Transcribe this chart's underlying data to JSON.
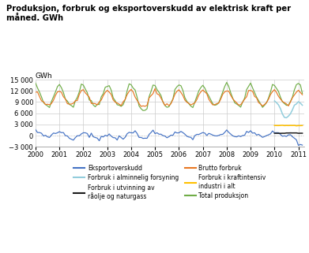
{
  "title": "Produksjon, forbruk og eksportoverskudd av elektrisk kraft per\nmåned. GWh",
  "ylabel": "GWh",
  "ylim": [
    -3000,
    15000
  ],
  "yticks": [
    -3000,
    0,
    3000,
    6000,
    9000,
    12000,
    15000
  ],
  "xlim_start": 2000.0,
  "xlim_end": 2011.25,
  "xtick_labels": [
    "2000",
    "2001",
    "2002",
    "2003",
    "2004",
    "2005",
    "2006",
    "2007",
    "2008",
    "2009",
    "2010",
    "2011"
  ],
  "colors": {
    "eksportoverskudd": "#4472C4",
    "forbruk_utvinning": "#1A1A1A",
    "forbruk_kraftintensiv": "#FFC000",
    "forbruk_alminnelig": "#92CDDC",
    "brutto_forbruk": "#E87722",
    "total_produksjon": "#70AD47"
  },
  "legend_items": [
    {
      "label": "Eksportoverskudd",
      "color": "#4472C4",
      "col": 0
    },
    {
      "label": "Forbruk i alminnelig forsyning",
      "color": "#92CDDC",
      "col": 1
    },
    {
      "label": "Forbruk i utvinning av\nråolje og naturgass",
      "color": "#1A1A1A",
      "col": 0
    },
    {
      "label": "Brutto forbruk",
      "color": "#E87722",
      "col": 1
    },
    {
      "label": "Forbruk i kraftintensiv\nindustri i alt",
      "color": "#FFC000",
      "col": 0
    },
    {
      "label": "Total produksjon",
      "color": "#70AD47",
      "col": 1
    }
  ],
  "grid_color": "#CCCCCC",
  "zero_line_color": "#AAAAAA"
}
